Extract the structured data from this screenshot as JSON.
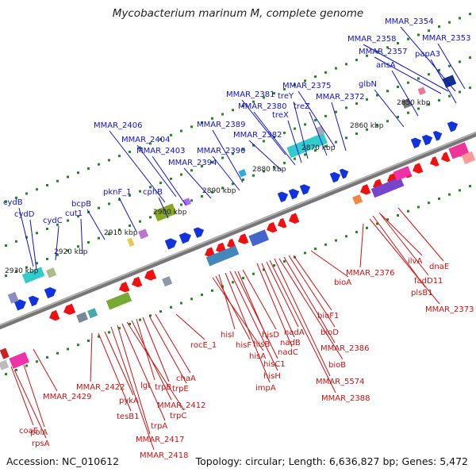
{
  "title": "Mycobacterium marinum M, complete genome",
  "footer": {
    "accession": "Accession: NC_010612",
    "topology": "Topology: circular; Length: 6,636,827 bp; Genes: 5,472"
  },
  "colors": {
    "forward_label": "#1111cc",
    "reverse_label": "#cc1111",
    "backbone": "#777777",
    "tick": "#228822",
    "ruler_text": "#222222",
    "forward_arrow": "#1133dd",
    "reverse_arrow": "#ee1111"
  },
  "ruler_labels": [
    "2850 kbp",
    "2860 kbp",
    "2870 kbp",
    "2880 kbp",
    "2890 kbp",
    "2900 kbp",
    "2910 kbp",
    "2920 kbp",
    "2930 kbp"
  ],
  "forward_genes": [
    "MMAR_2354",
    "MMAR_2353",
    "MMAR_2358",
    "MMAR_2357",
    "papA3",
    "ansA",
    "glbN",
    "MMAR_2375",
    "treY",
    "MMAR_2372",
    "MMAR_2381",
    "MMAR_2380",
    "treZ",
    "treX",
    "MMAR_2406",
    "MMAR_2389",
    "MMAR_2382",
    "MMAR_2404",
    "MMAR_2403",
    "MMAR_2390",
    "MMAR_2394",
    "cphB",
    "pknF_1",
    "cydB",
    "bcpB",
    "cut1",
    "cydD",
    "cydC"
  ],
  "reverse_genes": [
    "dnaE",
    "ilvA",
    "fadD11",
    "MMAR_2376",
    "plsB1",
    "MMAR_2373",
    "bioA",
    "bioF1",
    "bioD",
    "MMAR_2386",
    "bioB",
    "MMAR_5574",
    "MMAR_2388",
    "nadA",
    "nadB",
    "nadC",
    "hisD",
    "hisB",
    "hisC1",
    "hisH",
    "impA",
    "hisI",
    "hisF",
    "hisA",
    "rocE_1",
    "chaA",
    "trpE",
    "trpB",
    "lgt",
    "MMAR_2412",
    "trpC",
    "trpA",
    "MMAR_2417",
    "MMAR_2418",
    "MMAR_2422",
    "pykA",
    "tesB1",
    "MMAR_2429",
    "polA",
    "coaE",
    "rpsA"
  ]
}
